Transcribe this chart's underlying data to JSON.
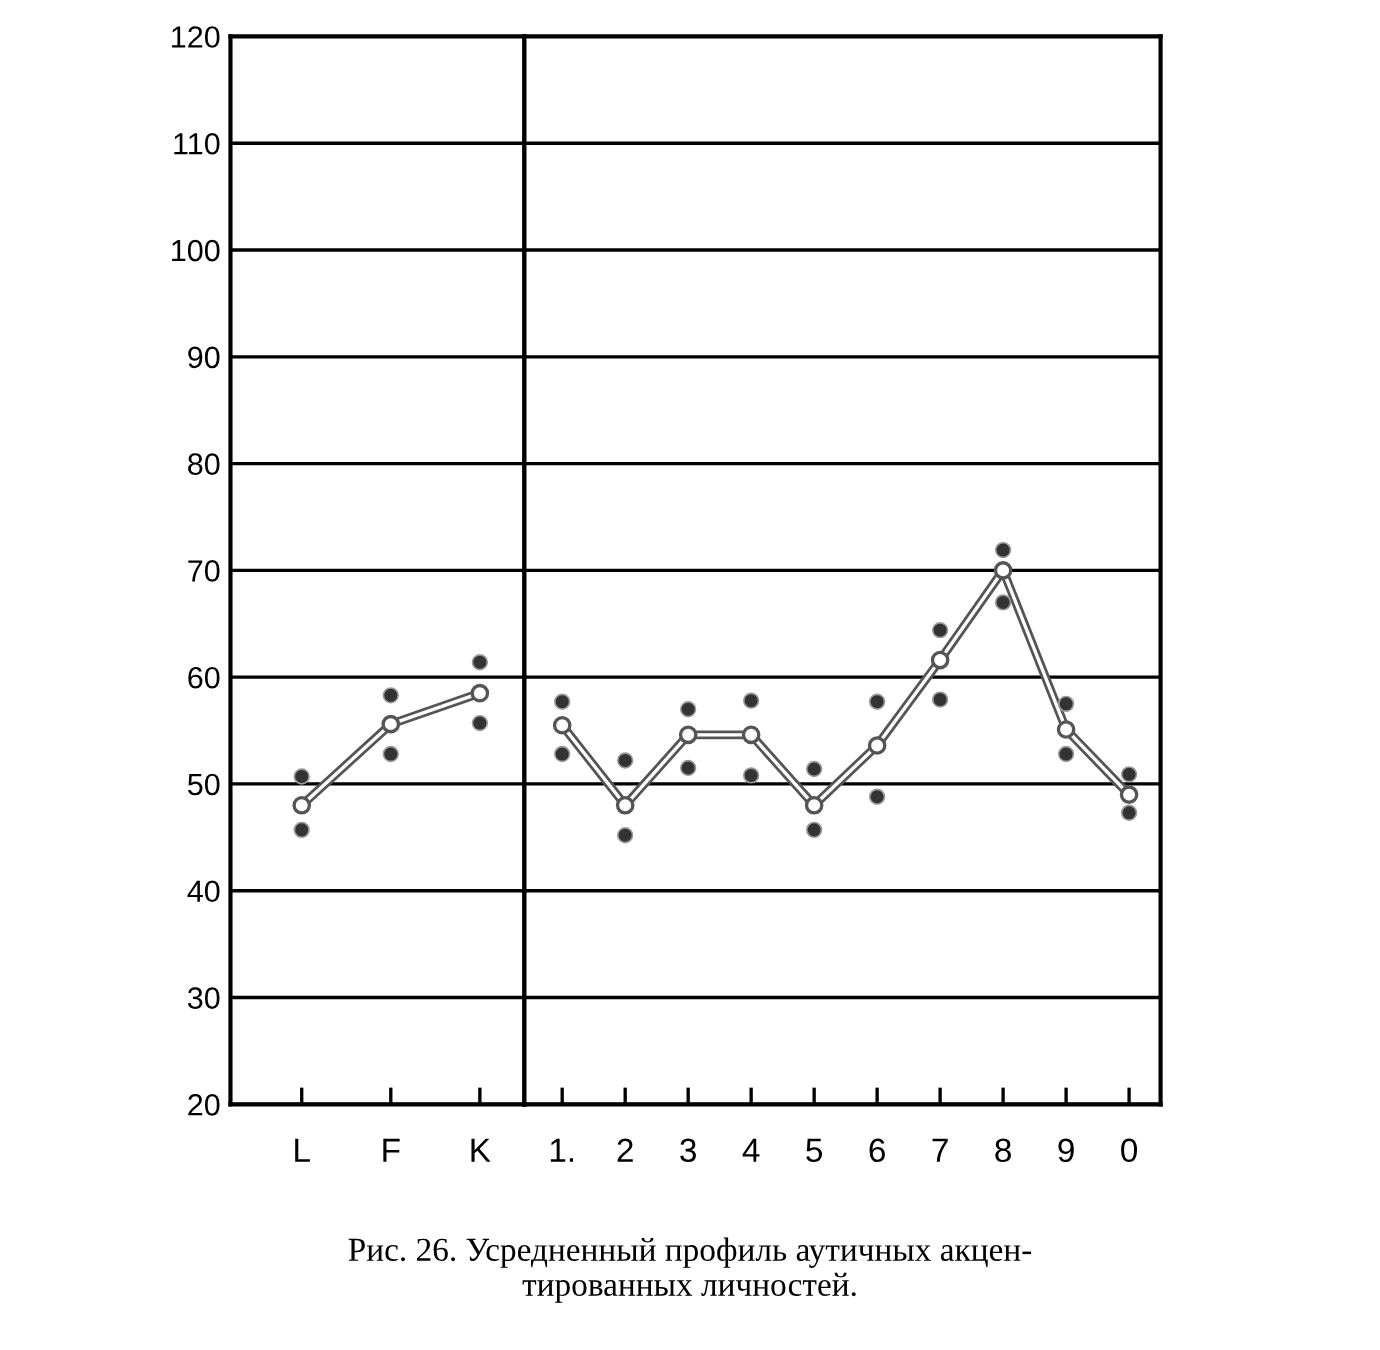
{
  "chart_data": [
    {
      "type": "line",
      "categories": [
        "L",
        "F",
        "K"
      ],
      "ylim": [
        20,
        120
      ],
      "yticks": [
        20,
        30,
        40,
        50,
        60,
        70,
        80,
        90,
        100,
        110,
        120
      ],
      "grid": "y",
      "marker": "circle",
      "series": [
        {
          "color": "#555555",
          "values": [
            48.0,
            55.6,
            58.5
          ]
        },
        {
          "type": "scatter",
          "color": "#333333",
          "values": [
            50.7,
            58.3,
            61.4
          ]
        },
        {
          "type": "scatter",
          "color": "#333333",
          "values": [
            45.7,
            52.8,
            55.7
          ]
        }
      ]
    },
    {
      "type": "line",
      "categories": [
        "1.",
        "2",
        "3",
        "4",
        "5",
        "6",
        "7",
        "8",
        "9",
        "0"
      ],
      "ylim": [
        20,
        120
      ],
      "yticks": [
        20,
        30,
        40,
        50,
        60,
        70,
        80,
        90,
        100,
        110,
        120
      ],
      "grid": "y",
      "marker": "circle",
      "tick_labels": "x",
      "annotations": [
        "Рис. 26. Усредненный профиль аутичных акцен-\nтированных личностей."
      ],
      "series": [
        {
          "color": "#555555",
          "values": [
            55.5,
            48.0,
            54.6,
            54.6,
            48.0,
            53.6,
            61.6,
            70.0,
            55.1,
            49.0
          ]
        },
        {
          "type": "scatter",
          "color": "#333333",
          "values": [
            57.7,
            52.2,
            57.0,
            57.8,
            51.4,
            57.7,
            64.4,
            71.9,
            57.5,
            50.9
          ]
        },
        {
          "type": "scatter",
          "color": "#333333",
          "values": [
            52.8,
            45.2,
            51.5,
            50.8,
            45.7,
            48.8,
            57.9,
            67.0,
            52.8,
            47.3
          ]
        }
      ]
    }
  ]
}
